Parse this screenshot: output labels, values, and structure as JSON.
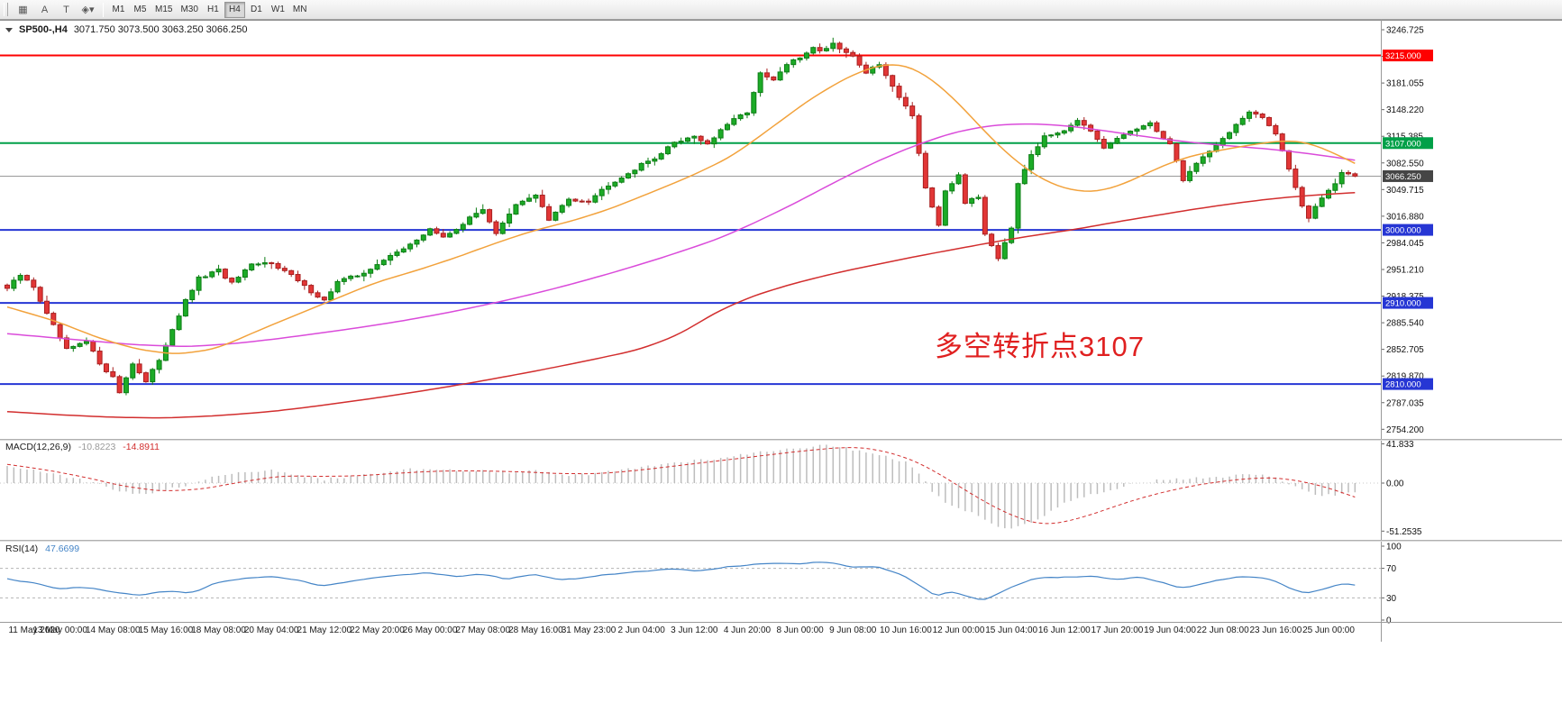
{
  "toolbar": {
    "icon_buttons": [
      {
        "name": "bar-chart-icon",
        "glyph": "▦"
      },
      {
        "name": "cursor-a-icon",
        "glyph": "A"
      },
      {
        "name": "text-tool-icon",
        "glyph": "T"
      },
      {
        "name": "tools-dropdown-icon",
        "glyph": "◈▾"
      }
    ],
    "timeframes": [
      "M1",
      "M5",
      "M15",
      "M30",
      "H1",
      "H4",
      "D1",
      "W1",
      "MN"
    ],
    "active_timeframe": "H4"
  },
  "price_chart": {
    "symbol_period": "SP500-,H4",
    "ohlc_text": "3071.750 3073.500 3063.250 3066.250",
    "annotation": "多空转折点3107",
    "levels": [
      {
        "price": 3215.0,
        "label": "3215.000",
        "color": "#fe0000",
        "width": 2
      },
      {
        "price": 3107.0,
        "label": "3107.000",
        "color": "#00a048",
        "width": 2
      },
      {
        "price": 3066.25,
        "label": "3066.250",
        "color": "#9a9a9a",
        "width": 1,
        "tag_color": "#454545"
      },
      {
        "price": 3000.0,
        "label": "3000.000",
        "color": "#2636d4",
        "width": 2
      },
      {
        "price": 2910.0,
        "label": "2910.000",
        "color": "#2636d4",
        "width": 2
      },
      {
        "price": 2810.0,
        "label": "2810.000",
        "color": "#2636d4",
        "width": 2
      }
    ],
    "y_ticks": [
      3246.725,
      3213.89,
      3181.055,
      3148.22,
      3115.385,
      3082.55,
      3049.715,
      3016.88,
      2984.045,
      2951.21,
      2918.375,
      2885.54,
      2852.705,
      2819.87,
      2787.035,
      2754.2
    ],
    "time_labels": [
      "11 May 2020",
      "13 May 00:00",
      "14 May 08:00",
      "15 May 16:00",
      "18 May 08:00",
      "20 May 04:00",
      "21 May 12:00",
      "22 May 20:00",
      "26 May 00:00",
      "27 May 08:00",
      "28 May 16:00",
      "31 May 23:00",
      "2 Jun 04:00",
      "3 Jun 12:00",
      "4 Jun 20:00",
      "8 Jun 00:00",
      "9 Jun 08:00",
      "10 Jun 16:00",
      "12 Jun 00:00",
      "15 Jun 04:00",
      "16 Jun 12:00",
      "17 Jun 20:00",
      "19 Jun 04:00",
      "22 Jun 08:00",
      "23 Jun 16:00",
      "25 Jun 00:00"
    ]
  },
  "macd_panel": {
    "label": "MACD(12,26,9)",
    "macd_value": "-10.8223",
    "signal_value": "-14.8911",
    "y_ticks": [
      41.833,
      0,
      -51.2535
    ],
    "y_tick_labels": [
      "41.833",
      "0.00",
      "-51.2535"
    ]
  },
  "rsi_panel": {
    "label": "RSI(14)",
    "value": "47.6699",
    "y_ticks": [
      100,
      70,
      30,
      0
    ],
    "levels": [
      70,
      30
    ]
  },
  "chart_data": {
    "type": "candlestick+indicators",
    "symbol": "SP500-",
    "timeframe": "H4",
    "bars": 205,
    "last_close": 3066.25,
    "price_axis_range": [
      2751.215,
      3246.725
    ],
    "colors": {
      "up_candle": "#1cab27",
      "up_border": "#0d7d15",
      "down_candle": "#e23636",
      "down_border": "#a82020",
      "ma_fast": "#f2a23c",
      "ma_mid": "#da4bda",
      "ma_slow": "#d22e2e",
      "macd_hist": "#bdbdbd",
      "macd_signal": "#d22e2e",
      "rsi_line": "#4585c7"
    },
    "close_waypoints": [
      [
        0,
        2928
      ],
      [
        2,
        2944
      ],
      [
        4,
        2930
      ],
      [
        6,
        2896
      ],
      [
        9,
        2852
      ],
      [
        12,
        2862
      ],
      [
        14,
        2836
      ],
      [
        16,
        2818
      ],
      [
        17,
        2800
      ],
      [
        19,
        2836
      ],
      [
        21,
        2812
      ],
      [
        23,
        2840
      ],
      [
        25,
        2878
      ],
      [
        27,
        2912
      ],
      [
        29,
        2940
      ],
      [
        32,
        2950
      ],
      [
        34,
        2934
      ],
      [
        37,
        2956
      ],
      [
        40,
        2960
      ],
      [
        43,
        2944
      ],
      [
        45,
        2930
      ],
      [
        48,
        2913
      ],
      [
        50,
        2936
      ],
      [
        53,
        2944
      ],
      [
        56,
        2956
      ],
      [
        59,
        2974
      ],
      [
        62,
        2986
      ],
      [
        64,
        3002
      ],
      [
        66,
        2990
      ],
      [
        69,
        3008
      ],
      [
        72,
        3026
      ],
      [
        74,
        2996
      ],
      [
        77,
        3030
      ],
      [
        80,
        3044
      ],
      [
        82,
        3012
      ],
      [
        85,
        3038
      ],
      [
        88,
        3036
      ],
      [
        91,
        3056
      ],
      [
        94,
        3070
      ],
      [
        96,
        3080
      ],
      [
        99,
        3094
      ],
      [
        101,
        3108
      ],
      [
        104,
        3116
      ],
      [
        106,
        3106
      ],
      [
        109,
        3130
      ],
      [
        112,
        3146
      ],
      [
        114,
        3192
      ],
      [
        116,
        3184
      ],
      [
        118,
        3204
      ],
      [
        120,
        3212
      ],
      [
        122,
        3226
      ],
      [
        123,
        3220
      ],
      [
        125,
        3230
      ],
      [
        128,
        3214
      ],
      [
        130,
        3194
      ],
      [
        132,
        3204
      ],
      [
        134,
        3176
      ],
      [
        136,
        3154
      ],
      [
        137,
        3140
      ],
      [
        139,
        3052
      ],
      [
        141,
        3004
      ],
      [
        142,
        3046
      ],
      [
        144,
        3068
      ],
      [
        145,
        3034
      ],
      [
        147,
        3040
      ],
      [
        148,
        2996
      ],
      [
        150,
        2966
      ],
      [
        152,
        3004
      ],
      [
        153,
        3058
      ],
      [
        155,
        3094
      ],
      [
        157,
        3114
      ],
      [
        160,
        3124
      ],
      [
        162,
        3136
      ],
      [
        164,
        3120
      ],
      [
        166,
        3100
      ],
      [
        168,
        3112
      ],
      [
        170,
        3122
      ],
      [
        173,
        3130
      ],
      [
        176,
        3106
      ],
      [
        178,
        3062
      ],
      [
        180,
        3082
      ],
      [
        182,
        3098
      ],
      [
        184,
        3112
      ],
      [
        186,
        3130
      ],
      [
        188,
        3144
      ],
      [
        190,
        3138
      ],
      [
        192,
        3120
      ],
      [
        194,
        3076
      ],
      [
        196,
        3030
      ],
      [
        197,
        3014
      ],
      [
        199,
        3040
      ],
      [
        201,
        3058
      ],
      [
        202,
        3072
      ],
      [
        204,
        3066.25
      ]
    ],
    "ma_fast_waypoints": [
      [
        0,
        2905
      ],
      [
        8,
        2886
      ],
      [
        14,
        2866
      ],
      [
        20,
        2852
      ],
      [
        26,
        2846
      ],
      [
        32,
        2854
      ],
      [
        38,
        2876
      ],
      [
        44,
        2896
      ],
      [
        50,
        2916
      ],
      [
        56,
        2936
      ],
      [
        62,
        2950
      ],
      [
        68,
        2966
      ],
      [
        74,
        2984
      ],
      [
        80,
        3000
      ],
      [
        86,
        3012
      ],
      [
        92,
        3028
      ],
      [
        98,
        3048
      ],
      [
        104,
        3068
      ],
      [
        110,
        3092
      ],
      [
        116,
        3128
      ],
      [
        122,
        3164
      ],
      [
        128,
        3192
      ],
      [
        133,
        3206
      ],
      [
        137,
        3202
      ],
      [
        141,
        3180
      ],
      [
        145,
        3148
      ],
      [
        149,
        3112
      ],
      [
        153,
        3082
      ],
      [
        157,
        3060
      ],
      [
        161,
        3048
      ],
      [
        165,
        3046
      ],
      [
        169,
        3056
      ],
      [
        173,
        3072
      ],
      [
        177,
        3086
      ],
      [
        181,
        3095
      ],
      [
        185,
        3100
      ],
      [
        189,
        3106
      ],
      [
        193,
        3110
      ],
      [
        196,
        3110
      ],
      [
        199,
        3102
      ],
      [
        202,
        3090
      ],
      [
        204,
        3082
      ]
    ],
    "ma_mid_waypoints": [
      [
        0,
        2872
      ],
      [
        10,
        2865
      ],
      [
        20,
        2858
      ],
      [
        28,
        2856
      ],
      [
        36,
        2861
      ],
      [
        44,
        2869
      ],
      [
        52,
        2878
      ],
      [
        60,
        2888
      ],
      [
        68,
        2900
      ],
      [
        76,
        2914
      ],
      [
        84,
        2930
      ],
      [
        92,
        2948
      ],
      [
        100,
        2968
      ],
      [
        108,
        2990
      ],
      [
        114,
        3012
      ],
      [
        120,
        3036
      ],
      [
        126,
        3062
      ],
      [
        132,
        3086
      ],
      [
        138,
        3106
      ],
      [
        144,
        3122
      ],
      [
        150,
        3130
      ],
      [
        156,
        3131
      ],
      [
        162,
        3127
      ],
      [
        168,
        3120
      ],
      [
        174,
        3113
      ],
      [
        180,
        3107
      ],
      [
        186,
        3103
      ],
      [
        192,
        3099
      ],
      [
        198,
        3093
      ],
      [
        204,
        3086
      ]
    ],
    "ma_slow_waypoints": [
      [
        0,
        2776
      ],
      [
        8,
        2772
      ],
      [
        16,
        2769
      ],
      [
        24,
        2768
      ],
      [
        32,
        2771
      ],
      [
        40,
        2776
      ],
      [
        48,
        2784
      ],
      [
        56,
        2793
      ],
      [
        64,
        2803
      ],
      [
        72,
        2814
      ],
      [
        80,
        2826
      ],
      [
        88,
        2839
      ],
      [
        96,
        2853
      ],
      [
        102,
        2872
      ],
      [
        108,
        2902
      ],
      [
        114,
        2922
      ],
      [
        120,
        2936
      ],
      [
        126,
        2948
      ],
      [
        132,
        2958
      ],
      [
        138,
        2968
      ],
      [
        144,
        2977
      ],
      [
        150,
        2986
      ],
      [
        156,
        2994
      ],
      [
        162,
        3001
      ],
      [
        168,
        3010
      ],
      [
        174,
        3018
      ],
      [
        180,
        3026
      ],
      [
        186,
        3033
      ],
      [
        192,
        3039
      ],
      [
        198,
        3043
      ],
      [
        204,
        3046
      ]
    ],
    "macd_range": [
      -51.2535,
      41.833
    ],
    "macd_hist_waypoints": [
      [
        0,
        18
      ],
      [
        4,
        14
      ],
      [
        8,
        8
      ],
      [
        12,
        2
      ],
      [
        16,
        -6
      ],
      [
        20,
        -12
      ],
      [
        24,
        -8
      ],
      [
        28,
        0
      ],
      [
        32,
        8
      ],
      [
        36,
        13
      ],
      [
        40,
        13
      ],
      [
        44,
        8
      ],
      [
        48,
        4
      ],
      [
        52,
        7
      ],
      [
        56,
        11
      ],
      [
        60,
        14
      ],
      [
        64,
        16
      ],
      [
        68,
        13
      ],
      [
        72,
        14
      ],
      [
        76,
        11
      ],
      [
        80,
        13
      ],
      [
        84,
        8
      ],
      [
        88,
        9
      ],
      [
        92,
        13
      ],
      [
        96,
        17
      ],
      [
        100,
        21
      ],
      [
        104,
        24
      ],
      [
        108,
        27
      ],
      [
        112,
        31
      ],
      [
        116,
        35
      ],
      [
        120,
        38
      ],
      [
        124,
        40
      ],
      [
        128,
        36
      ],
      [
        132,
        31
      ],
      [
        136,
        22
      ],
      [
        138,
        10
      ],
      [
        140,
        -8
      ],
      [
        142,
        -20
      ],
      [
        144,
        -26
      ],
      [
        146,
        -32
      ],
      [
        148,
        -40
      ],
      [
        150,
        -46
      ],
      [
        152,
        -48
      ],
      [
        154,
        -44
      ],
      [
        156,
        -38
      ],
      [
        158,
        -30
      ],
      [
        160,
        -22
      ],
      [
        164,
        -12
      ],
      [
        168,
        -5
      ],
      [
        172,
        1
      ],
      [
        176,
        4
      ],
      [
        180,
        6
      ],
      [
        184,
        7
      ],
      [
        188,
        9
      ],
      [
        190,
        9
      ],
      [
        192,
        6
      ],
      [
        194,
        0
      ],
      [
        196,
        -8
      ],
      [
        198,
        -12
      ],
      [
        200,
        -13
      ],
      [
        202,
        -12
      ],
      [
        204,
        -10.8
      ]
    ],
    "macd_signal_waypoints": [
      [
        0,
        20
      ],
      [
        6,
        14
      ],
      [
        12,
        6
      ],
      [
        18,
        -4
      ],
      [
        24,
        -9
      ],
      [
        30,
        -6
      ],
      [
        36,
        2
      ],
      [
        42,
        8
      ],
      [
        48,
        7
      ],
      [
        54,
        8
      ],
      [
        60,
        11
      ],
      [
        66,
        13
      ],
      [
        72,
        13
      ],
      [
        78,
        12
      ],
      [
        84,
        10
      ],
      [
        90,
        10
      ],
      [
        96,
        14
      ],
      [
        102,
        19
      ],
      [
        108,
        24
      ],
      [
        114,
        29
      ],
      [
        120,
        34
      ],
      [
        126,
        38
      ],
      [
        130,
        38
      ],
      [
        134,
        32
      ],
      [
        138,
        22
      ],
      [
        142,
        6
      ],
      [
        146,
        -12
      ],
      [
        150,
        -28
      ],
      [
        154,
        -40
      ],
      [
        157,
        -45
      ],
      [
        160,
        -42
      ],
      [
        164,
        -34
      ],
      [
        168,
        -24
      ],
      [
        172,
        -15
      ],
      [
        176,
        -8
      ],
      [
        180,
        -2
      ],
      [
        184,
        2
      ],
      [
        188,
        5
      ],
      [
        192,
        6
      ],
      [
        196,
        2
      ],
      [
        200,
        -5
      ],
      [
        204,
        -14.9
      ]
    ],
    "rsi_range": [
      0,
      100
    ],
    "rsi_waypoints": [
      [
        0,
        55
      ],
      [
        4,
        50
      ],
      [
        8,
        42
      ],
      [
        12,
        45
      ],
      [
        16,
        38
      ],
      [
        20,
        33
      ],
      [
        24,
        40
      ],
      [
        28,
        36
      ],
      [
        32,
        52
      ],
      [
        36,
        57
      ],
      [
        40,
        60
      ],
      [
        44,
        55
      ],
      [
        48,
        45
      ],
      [
        52,
        53
      ],
      [
        56,
        57
      ],
      [
        60,
        61
      ],
      [
        64,
        64
      ],
      [
        68,
        58
      ],
      [
        72,
        62
      ],
      [
        76,
        55
      ],
      [
        80,
        63
      ],
      [
        84,
        54
      ],
      [
        88,
        58
      ],
      [
        92,
        63
      ],
      [
        96,
        66
      ],
      [
        100,
        69
      ],
      [
        104,
        67
      ],
      [
        108,
        71
      ],
      [
        112,
        74
      ],
      [
        116,
        78
      ],
      [
        120,
        76
      ],
      [
        124,
        79
      ],
      [
        128,
        71
      ],
      [
        132,
        73
      ],
      [
        136,
        60
      ],
      [
        138,
        48
      ],
      [
        140,
        36
      ],
      [
        141,
        30
      ],
      [
        143,
        40
      ],
      [
        145,
        34
      ],
      [
        147,
        28
      ],
      [
        148,
        25
      ],
      [
        150,
        35
      ],
      [
        152,
        45
      ],
      [
        154,
        52
      ],
      [
        156,
        57
      ],
      [
        158,
        58
      ],
      [
        160,
        57
      ],
      [
        164,
        60
      ],
      [
        168,
        55
      ],
      [
        172,
        58
      ],
      [
        176,
        48
      ],
      [
        178,
        42
      ],
      [
        182,
        52
      ],
      [
        186,
        58
      ],
      [
        188,
        60
      ],
      [
        190,
        57
      ],
      [
        192,
        52
      ],
      [
        194,
        44
      ],
      [
        196,
        37
      ],
      [
        197,
        35
      ],
      [
        199,
        42
      ],
      [
        201,
        46
      ],
      [
        203,
        49
      ],
      [
        204,
        47.7
      ]
    ]
  }
}
